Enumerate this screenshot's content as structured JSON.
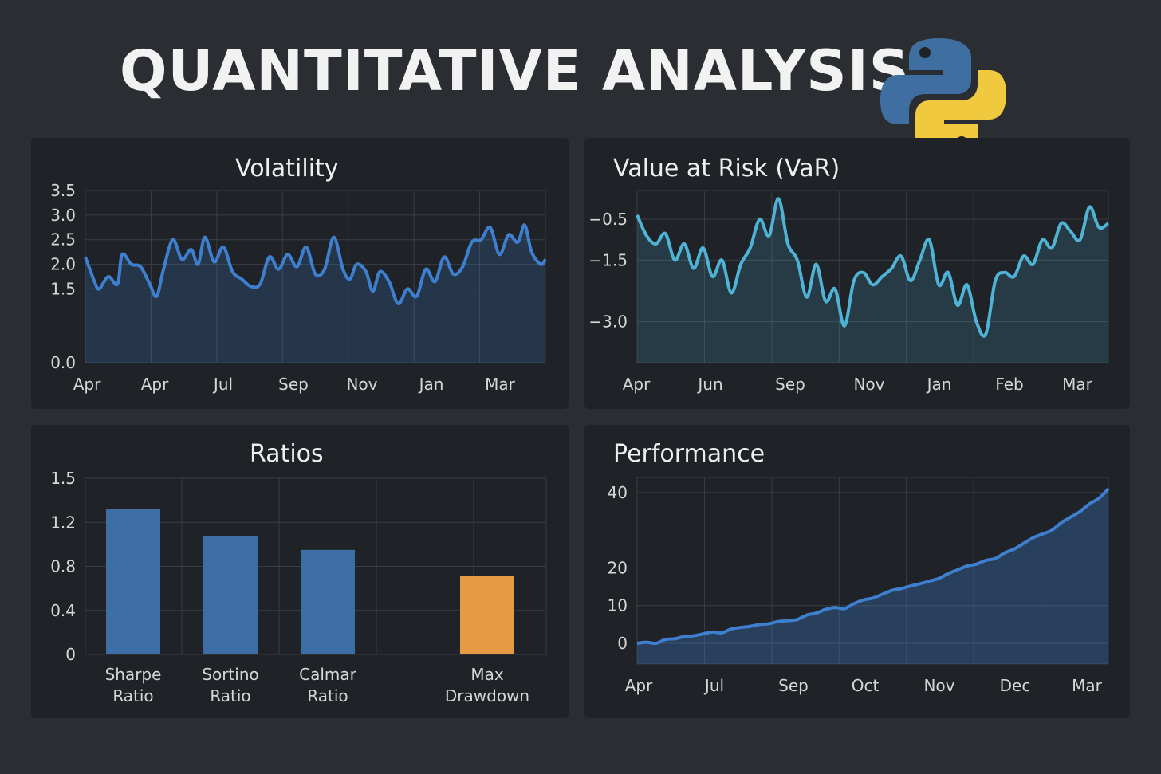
{
  "header": {
    "title": "QUANTITATIVE ANALYSIS",
    "logo_icon": "python-logo"
  },
  "colors": {
    "background": "#2a2d31",
    "panel": "#1f2226",
    "blue": "#3f7fcf",
    "teal": "#4fb3d6",
    "bar_blue": "#3d6fa6",
    "bar_orange": "#e79a44"
  },
  "chart_data": [
    {
      "id": "volatility",
      "type": "line",
      "title": "Volatility",
      "ylim": [
        0,
        3.5
      ],
      "yticks": [
        "0.0",
        "1.5",
        "2.0",
        "2.5",
        "3.0",
        "3.5"
      ],
      "yticks_values": [
        0,
        1.5,
        2.0,
        2.5,
        3.0,
        3.5
      ],
      "xticks": [
        "Apr",
        "Apr",
        "Jul",
        "Sep",
        "Nov",
        "Jan",
        "Mar"
      ],
      "grid": true,
      "fill": true,
      "x_range": [
        0,
        100
      ],
      "series": [
        {
          "x": [
            0,
            2,
            3,
            5,
            7,
            8,
            10,
            12,
            14,
            15.5,
            17,
            19,
            21,
            23,
            24.5,
            26,
            28,
            30,
            32,
            34,
            36,
            38,
            40,
            42,
            44,
            46,
            48,
            50,
            52,
            54,
            56,
            57.5,
            59,
            61,
            62.5,
            64,
            66,
            68,
            70,
            72,
            74,
            76,
            78,
            80,
            82,
            84,
            86,
            88,
            90,
            92,
            94,
            95.5,
            97,
            99,
            100
          ],
          "values": [
            2.15,
            1.65,
            1.5,
            1.75,
            1.6,
            2.2,
            2.0,
            1.95,
            1.6,
            1.35,
            1.9,
            2.5,
            2.1,
            2.3,
            2.0,
            2.55,
            2.05,
            2.35,
            1.85,
            1.7,
            1.55,
            1.6,
            2.15,
            1.9,
            2.2,
            1.95,
            2.35,
            1.8,
            1.9,
            2.55,
            1.9,
            1.7,
            2.0,
            1.85,
            1.45,
            1.85,
            1.65,
            1.2,
            1.5,
            1.35,
            1.9,
            1.65,
            2.15,
            1.8,
            1.95,
            2.45,
            2.5,
            2.75,
            2.2,
            2.6,
            2.45,
            2.8,
            2.25,
            2.0,
            2.1
          ]
        }
      ]
    },
    {
      "id": "var",
      "type": "line",
      "title": "Value at Risk (VaR)",
      "ylim": [
        -4.0,
        0.2
      ],
      "yticks": [
        "−0.5",
        "−1.5",
        "−3.0"
      ],
      "yticks_values": [
        -0.5,
        -1.5,
        -3.0
      ],
      "xticks": [
        "Apr",
        "Jun",
        "Sep",
        "Nov",
        "Jan",
        "Feb",
        "Mar"
      ],
      "grid": true,
      "fill": true,
      "x_range": [
        0,
        100
      ],
      "series": [
        {
          "x": [
            0,
            2,
            4,
            6,
            8,
            10,
            12,
            14,
            16,
            18,
            20,
            22,
            24,
            26,
            28,
            30,
            32,
            34,
            36,
            38,
            40,
            42,
            44,
            46,
            48,
            50,
            52,
            54,
            56,
            58,
            60,
            62,
            64,
            66,
            68,
            70,
            72,
            74,
            76,
            78,
            80,
            82,
            84,
            86,
            88,
            90,
            92,
            94,
            96,
            98,
            100
          ],
          "values": [
            -0.4,
            -0.9,
            -1.1,
            -0.85,
            -1.5,
            -1.1,
            -1.7,
            -1.2,
            -1.9,
            -1.5,
            -2.3,
            -1.6,
            -1.2,
            -0.5,
            -0.9,
            0.0,
            -1.1,
            -1.5,
            -2.4,
            -1.6,
            -2.5,
            -2.2,
            -3.1,
            -2.0,
            -1.8,
            -2.1,
            -1.9,
            -1.7,
            -1.4,
            -2.0,
            -1.5,
            -1.0,
            -2.1,
            -1.8,
            -2.6,
            -2.1,
            -3.0,
            -3.3,
            -2.0,
            -1.8,
            -1.9,
            -1.4,
            -1.6,
            -1.0,
            -1.2,
            -0.6,
            -0.8,
            -1.0,
            -0.2,
            -0.7,
            -0.6
          ]
        }
      ]
    },
    {
      "id": "ratios",
      "type": "bar",
      "title": "Ratios",
      "ylim": [
        0,
        1.5
      ],
      "yticks": [
        "0",
        "0.4",
        "0.8",
        "1.2",
        "1.5"
      ],
      "yticks_values": [
        0,
        0.375,
        0.75,
        1.125,
        1.5
      ],
      "categories": [
        {
          "line1": "Sharpe",
          "line2": "Ratio"
        },
        {
          "line1": "Sortino",
          "line2": "Ratio"
        },
        {
          "line1": "Calmar",
          "line2": "Ratio"
        },
        {
          "line1": "Max",
          "line2": "Drawdown"
        }
      ],
      "values": [
        1.24,
        1.01,
        0.89,
        0.67
      ],
      "bar_colors": [
        "#3d6fa6",
        "#3d6fa6",
        "#3d6fa6",
        "#e79a44"
      ],
      "grid": true
    },
    {
      "id": "performance",
      "type": "area",
      "title": "Performance",
      "ylim": [
        -5.5,
        44
      ],
      "yticks": [
        "0",
        "10",
        "20",
        "40"
      ],
      "yticks_values": [
        0,
        10,
        20,
        40
      ],
      "xticks": [
        "Apr",
        "Jul",
        "Sep",
        "Oct",
        "Nov",
        "Dec",
        "Mar"
      ],
      "grid": true,
      "fill": true,
      "x_range": [
        0,
        100
      ],
      "series": [
        {
          "x": [
            0,
            2,
            4,
            6,
            8,
            10,
            12,
            14,
            16,
            18,
            20,
            22,
            24,
            26,
            28,
            30,
            32,
            34,
            36,
            38,
            40,
            42,
            44,
            46,
            48,
            50,
            52,
            54,
            56,
            58,
            60,
            62,
            64,
            66,
            68,
            70,
            72,
            74,
            76,
            78,
            80,
            82,
            84,
            86,
            88,
            90,
            92,
            94,
            96,
            98,
            100
          ],
          "values": [
            0,
            0.3,
            0,
            1,
            1.2,
            1.8,
            2,
            2.5,
            3,
            2.8,
            3.8,
            4.2,
            4.5,
            5,
            5.2,
            5.8,
            6,
            6.3,
            7.5,
            8,
            9,
            9.5,
            9.2,
            10.5,
            11.5,
            12,
            13,
            14,
            14.5,
            15.2,
            15.8,
            16.5,
            17.2,
            18.5,
            19.5,
            20.5,
            21,
            22,
            22.5,
            24,
            25,
            26.5,
            28,
            29,
            30,
            32,
            33.5,
            35,
            37,
            38.5,
            41
          ]
        }
      ]
    }
  ]
}
